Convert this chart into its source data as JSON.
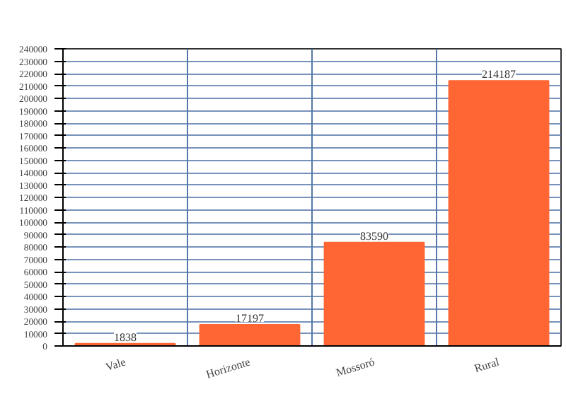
{
  "chart_data": {
    "type": "bar",
    "categories": [
      "Vale",
      "Horizonte",
      "Mossoró",
      "Rural"
    ],
    "values": [
      1838,
      17197,
      83590,
      214187
    ],
    "color": "#ff6633",
    "data_labels": true,
    "grid": true,
    "ylim": [
      0,
      240000
    ],
    "yticks": [
      0,
      10000,
      20000,
      30000,
      40000,
      50000,
      60000,
      70000,
      80000,
      90000,
      100000,
      110000,
      120000,
      130000,
      140000,
      150000,
      160000,
      170000,
      180000,
      190000,
      200000,
      210000,
      220000,
      230000,
      240000
    ]
  }
}
